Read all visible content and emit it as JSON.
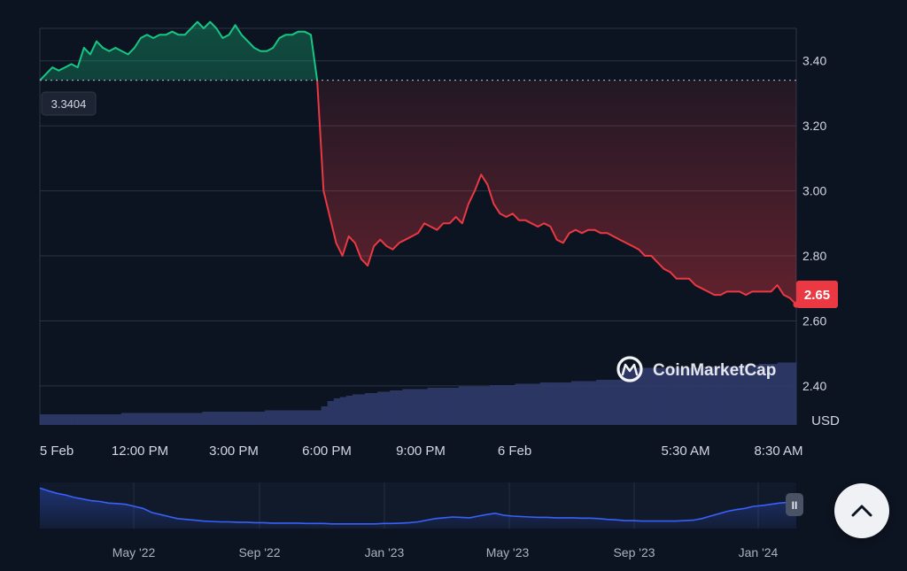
{
  "chart_data": [
    {
      "type": "area",
      "unit_label": "USD",
      "x_ticks": [
        "5 Feb",
        "12:00 PM",
        "3:00 PM",
        "6:00 PM",
        "9:00 PM",
        "6 Feb",
        "5:30 AM",
        "8:30 AM"
      ],
      "y_ticks": [
        "3.40",
        "3.20",
        "3.00",
        "2.80",
        "2.60",
        "2.40"
      ],
      "ylim": [
        2.28,
        3.5
      ],
      "reference_price": "3.3404",
      "current_price": "2.65",
      "colors": {
        "up": "#16c784",
        "down": "#ea3943",
        "volume": "#2f3a6a",
        "badge_bg": "#ea3943"
      },
      "series": [
        {
          "values": [
            3.34,
            3.36,
            3.38,
            3.37,
            3.38,
            3.39,
            3.38,
            3.44,
            3.42,
            3.46,
            3.44,
            3.43,
            3.44,
            3.43,
            3.42,
            3.44,
            3.47,
            3.48,
            3.47,
            3.48,
            3.48,
            3.49,
            3.48,
            3.48,
            3.5,
            3.52,
            3.5,
            3.52,
            3.5,
            3.47,
            3.48,
            3.51,
            3.48,
            3.46,
            3.44,
            3.43,
            3.43,
            3.44,
            3.47,
            3.48,
            3.48,
            3.49,
            3.49,
            3.48,
            3.34,
            3.0,
            2.92,
            2.84,
            2.8,
            2.86,
            2.84,
            2.79,
            2.77,
            2.83,
            2.85,
            2.83,
            2.82,
            2.84,
            2.85,
            2.86,
            2.87,
            2.9,
            2.89,
            2.88,
            2.9,
            2.9,
            2.92,
            2.9,
            2.96,
            3.0,
            3.05,
            3.02,
            2.96,
            2.93,
            2.92,
            2.93,
            2.91,
            2.91,
            2.9,
            2.89,
            2.9,
            2.89,
            2.85,
            2.84,
            2.87,
            2.88,
            2.87,
            2.88,
            2.88,
            2.87,
            2.87,
            2.86,
            2.85,
            2.84,
            2.83,
            2.82,
            2.8,
            2.8,
            2.78,
            2.76,
            2.75,
            2.73,
            2.73,
            2.73,
            2.71,
            2.7,
            2.69,
            2.68,
            2.68,
            2.69,
            2.69,
            2.69,
            2.68,
            2.69,
            2.69,
            2.69,
            2.69,
            2.71,
            2.68,
            2.67,
            2.65
          ]
        }
      ],
      "volume": [
        0.08,
        0.08,
        0.08,
        0.08,
        0.08,
        0.08,
        0.08,
        0.08,
        0.08,
        0.08,
        0.08,
        0.08,
        0.08,
        0.09,
        0.09,
        0.09,
        0.09,
        0.09,
        0.09,
        0.09,
        0.09,
        0.09,
        0.09,
        0.09,
        0.09,
        0.09,
        0.1,
        0.1,
        0.1,
        0.1,
        0.1,
        0.1,
        0.1,
        0.1,
        0.1,
        0.1,
        0.11,
        0.11,
        0.11,
        0.11,
        0.11,
        0.11,
        0.11,
        0.11,
        0.11,
        0.14,
        0.18,
        0.2,
        0.21,
        0.22,
        0.23,
        0.23,
        0.24,
        0.24,
        0.25,
        0.25,
        0.26,
        0.26,
        0.27,
        0.27,
        0.27,
        0.27,
        0.28,
        0.28,
        0.28,
        0.28,
        0.28,
        0.29,
        0.29,
        0.29,
        0.29,
        0.29,
        0.3,
        0.3,
        0.3,
        0.3,
        0.31,
        0.31,
        0.31,
        0.31,
        0.32,
        0.32,
        0.32,
        0.32,
        0.32,
        0.33,
        0.33,
        0.33,
        0.33,
        0.34,
        0.34,
        0.34,
        0.34,
        0.43,
        0.43,
        0.43,
        0.43,
        0.43,
        0.43,
        0.43,
        0.43,
        0.43,
        0.43,
        0.43,
        0.43,
        0.43,
        0.44,
        0.44,
        0.44,
        0.44,
        0.44,
        0.44,
        0.45,
        0.45,
        0.45,
        0.46,
        0.46,
        0.46,
        0.47,
        0.47,
        0.47
      ]
    },
    {
      "type": "line",
      "x_ticks": [
        "May '22",
        "Sep '22",
        "Jan '23",
        "May '23",
        "Sep '23",
        "Jan '24"
      ],
      "ylim": [
        0,
        1
      ],
      "series": [
        {
          "values": [
            0.95,
            0.88,
            0.82,
            0.78,
            0.72,
            0.68,
            0.64,
            0.62,
            0.58,
            0.57,
            0.55,
            0.5,
            0.45,
            0.35,
            0.3,
            0.25,
            0.2,
            0.18,
            0.16,
            0.14,
            0.13,
            0.12,
            0.12,
            0.11,
            0.11,
            0.1,
            0.1,
            0.09,
            0.09,
            0.09,
            0.09,
            0.08,
            0.08,
            0.08,
            0.07,
            0.07,
            0.07,
            0.07,
            0.07,
            0.07,
            0.08,
            0.08,
            0.09,
            0.1,
            0.12,
            0.16,
            0.2,
            0.22,
            0.24,
            0.23,
            0.22,
            0.26,
            0.3,
            0.33,
            0.28,
            0.26,
            0.25,
            0.24,
            0.23,
            0.23,
            0.22,
            0.22,
            0.22,
            0.21,
            0.21,
            0.2,
            0.18,
            0.17,
            0.15,
            0.15,
            0.14,
            0.14,
            0.14,
            0.14,
            0.14,
            0.15,
            0.16,
            0.2,
            0.26,
            0.32,
            0.38,
            0.42,
            0.45,
            0.5,
            0.52,
            0.55,
            0.58,
            0.6,
            0.57
          ]
        }
      ],
      "colors": {
        "line": "#3861fb"
      }
    }
  ],
  "watermark": {
    "brand": "CoinMarketCap"
  },
  "navigator": {
    "handle_glyph": "II"
  },
  "scroll_top_button": {
    "icon": "chevron-up-icon"
  }
}
